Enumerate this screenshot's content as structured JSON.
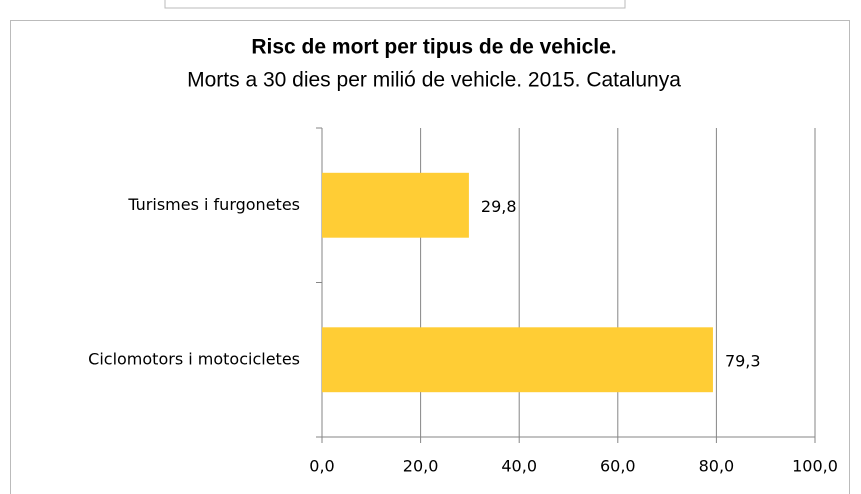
{
  "chart_data": {
    "type": "bar",
    "orientation": "horizontal",
    "title": "Risc de mort per tipus de de vehicle.",
    "subtitle": "Morts a 30 dies per milió de vehicle. 2015. Catalunya",
    "categories": [
      "Turismes i furgonetes",
      "Ciclomotors i motocicletes"
    ],
    "values": [
      29.8,
      79.3
    ],
    "value_labels": [
      "29,8",
      "79,3"
    ],
    "color": "#ffcd35",
    "xlim": [
      0,
      100
    ],
    "xticks": [
      {
        "value": 0,
        "label": "0,0"
      },
      {
        "value": 20,
        "label": "20,0"
      },
      {
        "value": 40,
        "label": "40,0"
      },
      {
        "value": 60,
        "label": "60,0"
      },
      {
        "value": 80,
        "label": "80,0"
      },
      {
        "value": 100,
        "label": "100,0"
      }
    ],
    "grid": true
  }
}
